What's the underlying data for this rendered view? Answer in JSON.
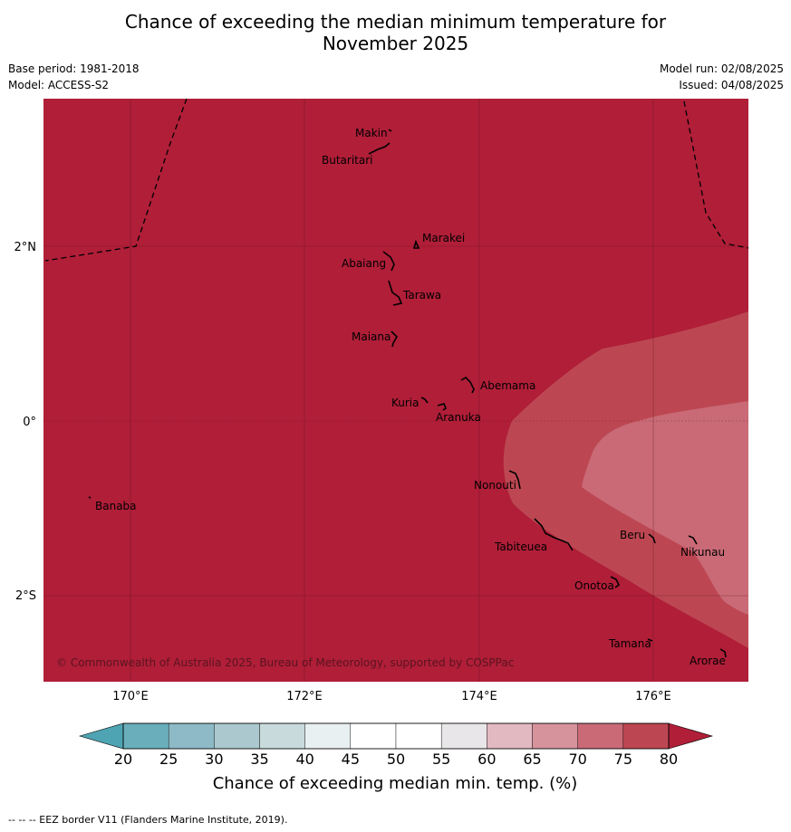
{
  "title_line1": "Chance of exceeding the median minimum temperature for",
  "title_line2": "November 2025",
  "base_period": "Base period: 1981-2018",
  "model": "Model: ACCESS-S2",
  "model_run": "Model run: 02/08/2025",
  "issued": "Issued: 04/08/2025",
  "lat_labels": [
    "2°N",
    "0°",
    "2°S"
  ],
  "lon_labels": [
    "170°E",
    "172°E",
    "174°E",
    "176°E"
  ],
  "islands": [
    "Makin",
    "Butaritari",
    "Marakei",
    "Abaiang",
    "Tarawa",
    "Maiana",
    "Abemama",
    "Kuria",
    "Aranuka",
    "Nonouti",
    "Banaba",
    "Beru",
    "Nikunau",
    "Tabiteuea",
    "Onotoa",
    "Tamana",
    "Arorae"
  ],
  "copyright": "© Commonwealth of Australia 2025, Bureau of Meteorology, supported by COSPPac",
  "colorbar": {
    "ticks": [
      "20",
      "25",
      "30",
      "35",
      "40",
      "45",
      "50",
      "55",
      "60",
      "65",
      "70",
      "75",
      "80"
    ],
    "colors": [
      "#6aaebc",
      "#8dbac6",
      "#abc8cf",
      "#c9dadd",
      "#e9f0f2",
      "#ffffff",
      "#ffffff",
      "#e8e6e8",
      "#e2b9c1",
      "#d6939c",
      "#c96a76",
      "#bc4752"
    ],
    "under_color": "#4ea4b3",
    "over_color": "#b01e38",
    "label": "Chance of exceeding median min. temp. (%)"
  },
  "map_colors": {
    "gt80": "#b01e38",
    "c75_80": "#bc4752",
    "c70_75": "#c96a76"
  },
  "eez_note": "--  --  -- EEZ border V11 (Flanders Marine Institute, 2019)."
}
